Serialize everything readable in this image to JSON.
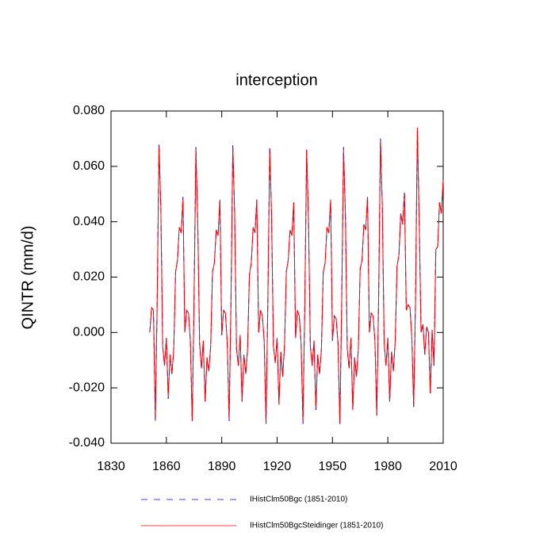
{
  "chart_data": {
    "type": "line",
    "title": "interception",
    "ylabel": "QINTR  (mm/d)",
    "x": [
      1851,
      1852,
      1853,
      1854,
      1855,
      1856,
      1857,
      1858,
      1859,
      1860,
      1861,
      1862,
      1863,
      1864,
      1865,
      1866,
      1867,
      1868,
      1869,
      1870,
      1871,
      1872,
      1873,
      1874,
      1875,
      1876,
      1877,
      1878,
      1879,
      1880,
      1881,
      1882,
      1883,
      1884,
      1885,
      1886,
      1887,
      1888,
      1889,
      1890,
      1891,
      1892,
      1893,
      1894,
      1895,
      1896,
      1897,
      1898,
      1899,
      1900,
      1901,
      1902,
      1903,
      1904,
      1905,
      1906,
      1907,
      1908,
      1909,
      1910,
      1911,
      1912,
      1913,
      1914,
      1915,
      1916,
      1917,
      1918,
      1919,
      1920,
      1921,
      1922,
      1923,
      1924,
      1925,
      1926,
      1927,
      1928,
      1929,
      1930,
      1931,
      1932,
      1933,
      1934,
      1935,
      1936,
      1937,
      1938,
      1939,
      1940,
      1941,
      1942,
      1943,
      1944,
      1945,
      1946,
      1947,
      1948,
      1949,
      1950,
      1951,
      1952,
      1953,
      1954,
      1955,
      1956,
      1957,
      1958,
      1959,
      1960,
      1961,
      1962,
      1963,
      1964,
      1965,
      1966,
      1967,
      1968,
      1969,
      1970,
      1971,
      1972,
      1973,
      1974,
      1975,
      1976,
      1977,
      1978,
      1979,
      1980,
      1981,
      1982,
      1983,
      1984,
      1985,
      1986,
      1987,
      1988,
      1989,
      1990,
      1991,
      1992,
      1993,
      1994,
      1995,
      1996,
      1997,
      1998,
      1999,
      2000,
      2001,
      2002,
      2003,
      2004,
      2005,
      2006,
      2007,
      2008,
      2009,
      2010
    ],
    "series": [
      {
        "name": "IHistClm50Bgc (1851-2010)",
        "color": "#0000ff",
        "dash": true,
        "values": [
          0.0,
          0.009,
          0.008,
          -0.032,
          0.01,
          0.068,
          0.045,
          -0.005,
          -0.012,
          -0.002,
          -0.024,
          -0.008,
          -0.015,
          -0.006,
          0.022,
          0.026,
          0.038,
          0.036,
          0.049,
          0.0,
          0.008,
          0.007,
          -0.003,
          -0.032,
          0.012,
          0.067,
          0.04,
          -0.004,
          -0.013,
          -0.003,
          -0.025,
          -0.009,
          -0.014,
          -0.005,
          0.022,
          0.025,
          0.037,
          0.035,
          0.048,
          -0.001,
          0.008,
          0.007,
          -0.004,
          -0.032,
          0.011,
          0.068,
          0.043,
          -0.006,
          -0.012,
          -0.001,
          -0.025,
          -0.008,
          -0.015,
          -0.006,
          0.021,
          0.025,
          0.038,
          0.036,
          0.048,
          0.0,
          0.008,
          0.006,
          -0.003,
          -0.033,
          0.012,
          0.067,
          0.042,
          -0.005,
          -0.011,
          -0.002,
          -0.026,
          -0.007,
          -0.016,
          -0.005,
          0.022,
          0.026,
          0.037,
          0.035,
          0.047,
          -0.002,
          0.008,
          0.006,
          -0.004,
          -0.033,
          0.01,
          0.066,
          0.041,
          -0.005,
          -0.012,
          -0.003,
          -0.028,
          -0.008,
          -0.015,
          -0.006,
          0.022,
          0.025,
          0.038,
          0.036,
          0.048,
          -0.003,
          0.006,
          0.005,
          -0.004,
          -0.033,
          0.011,
          0.067,
          0.043,
          -0.006,
          -0.013,
          -0.002,
          -0.028,
          -0.009,
          -0.016,
          -0.006,
          0.023,
          0.026,
          0.039,
          0.037,
          0.049,
          0.0,
          0.007,
          0.006,
          -0.003,
          -0.03,
          0.012,
          0.07,
          0.046,
          -0.004,
          -0.012,
          -0.002,
          -0.025,
          -0.007,
          -0.014,
          -0.003,
          0.024,
          0.028,
          0.043,
          0.039,
          0.051,
          0.008,
          0.01,
          0.009,
          -0.002,
          -0.027,
          0.012,
          0.073,
          0.04,
          0.0,
          0.003,
          -0.008,
          0.002,
          0.0,
          -0.022,
          0.001,
          -0.012,
          0.03,
          0.031,
          0.047,
          0.043,
          0.055
        ]
      },
      {
        "name": "IHistClm50BgcSteidinger (1851-2010)",
        "color": "#ff0000",
        "dash": false,
        "values": [
          0.0,
          0.009,
          0.008,
          -0.031,
          0.01,
          0.067,
          0.045,
          -0.005,
          -0.012,
          -0.002,
          -0.023,
          -0.008,
          -0.015,
          -0.006,
          0.022,
          0.026,
          0.038,
          0.036,
          0.048,
          0.0,
          0.008,
          0.007,
          -0.003,
          -0.032,
          0.012,
          0.066,
          0.04,
          -0.004,
          -0.013,
          -0.003,
          -0.025,
          -0.009,
          -0.014,
          -0.005,
          0.022,
          0.025,
          0.037,
          0.035,
          0.048,
          -0.001,
          0.008,
          0.007,
          -0.004,
          -0.031,
          0.011,
          0.067,
          0.043,
          -0.006,
          -0.012,
          -0.001,
          -0.025,
          -0.008,
          -0.015,
          -0.006,
          0.021,
          0.025,
          0.038,
          0.036,
          0.048,
          0.0,
          0.008,
          0.006,
          -0.003,
          -0.033,
          0.012,
          0.066,
          0.042,
          -0.005,
          -0.011,
          -0.002,
          -0.026,
          -0.007,
          -0.016,
          -0.005,
          0.022,
          0.026,
          0.037,
          0.035,
          0.047,
          -0.002,
          0.008,
          0.006,
          -0.004,
          -0.032,
          0.01,
          0.066,
          0.041,
          -0.005,
          -0.012,
          -0.003,
          -0.027,
          -0.008,
          -0.015,
          -0.006,
          0.022,
          0.025,
          0.038,
          0.036,
          0.048,
          -0.003,
          0.006,
          0.005,
          -0.004,
          -0.033,
          0.011,
          0.066,
          0.043,
          -0.006,
          -0.013,
          -0.002,
          -0.028,
          -0.009,
          -0.016,
          -0.006,
          0.023,
          0.026,
          0.039,
          0.037,
          0.049,
          0.0,
          0.007,
          0.006,
          -0.003,
          -0.03,
          0.012,
          0.069,
          0.046,
          -0.004,
          -0.012,
          -0.002,
          -0.025,
          -0.007,
          -0.014,
          -0.003,
          0.024,
          0.028,
          0.043,
          0.039,
          0.05,
          0.008,
          0.01,
          0.009,
          -0.002,
          -0.027,
          0.012,
          0.074,
          0.04,
          0.0,
          0.003,
          -0.008,
          0.002,
          0.0,
          -0.022,
          0.001,
          -0.012,
          0.03,
          0.031,
          0.047,
          0.043,
          0.055
        ]
      }
    ],
    "xlim": [
      1830,
      2010
    ],
    "xticks": [
      1830,
      1860,
      1890,
      1920,
      1950,
      1980,
      2010
    ],
    "ylim": [
      -0.04,
      0.08
    ],
    "yticks": [
      {
        "value": -0.04,
        "label": "-0.040"
      },
      {
        "value": -0.02,
        "label": "-0.020"
      },
      {
        "value": 0,
        "label": "0.000"
      },
      {
        "value": 0.02,
        "label": "0.020"
      },
      {
        "value": 0.04,
        "label": "0.040"
      },
      {
        "value": 0.06,
        "label": "0.060"
      },
      {
        "value": 0.08,
        "label": "0.080"
      }
    ],
    "legend": "bottom"
  }
}
